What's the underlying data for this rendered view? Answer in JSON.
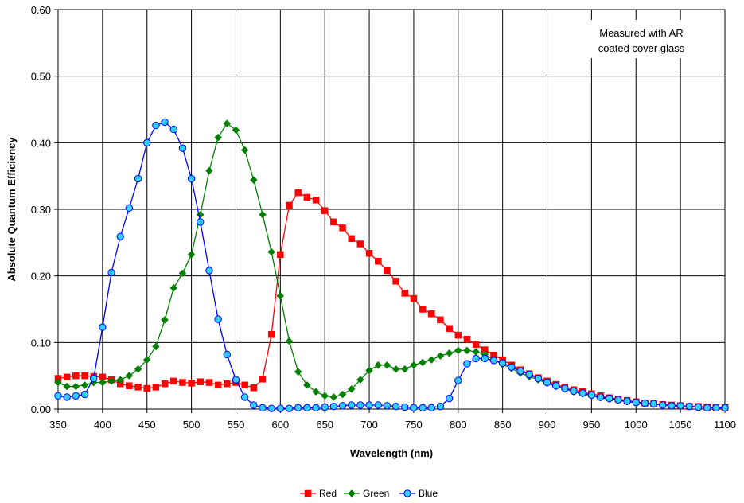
{
  "chart_data": {
    "type": "line",
    "title": "",
    "xlabel": "Wavelength (nm)",
    "ylabel": "Absolute Quantum Efficiency",
    "xlim": [
      350,
      1100
    ],
    "ylim": [
      0,
      0.6
    ],
    "x_ticks": [
      "350",
      "400",
      "450",
      "500",
      "550",
      "600",
      "650",
      "700",
      "750",
      "800",
      "850",
      "900",
      "950",
      "1000",
      "1050",
      "1100"
    ],
    "y_ticks": [
      "0.00",
      "0.10",
      "0.20",
      "0.30",
      "0.40",
      "0.50",
      "0.60"
    ],
    "grid": true,
    "legend_position": "bottom",
    "annotation": [
      "Measured with AR",
      "coated cover glass"
    ],
    "x": [
      350,
      360,
      370,
      380,
      390,
      400,
      410,
      420,
      430,
      440,
      450,
      460,
      470,
      480,
      490,
      500,
      510,
      520,
      530,
      540,
      550,
      560,
      570,
      580,
      590,
      600,
      610,
      620,
      630,
      640,
      650,
      660,
      670,
      680,
      690,
      700,
      710,
      720,
      730,
      740,
      750,
      760,
      770,
      780,
      790,
      800,
      810,
      820,
      830,
      840,
      850,
      860,
      870,
      880,
      890,
      900,
      910,
      920,
      930,
      940,
      950,
      960,
      970,
      980,
      990,
      1000,
      1010,
      1020,
      1030,
      1040,
      1050,
      1060,
      1070,
      1080,
      1090,
      1100
    ],
    "series": [
      {
        "name": "Red",
        "color": "#ff0000",
        "marker": "square",
        "values": [
          0.046,
          0.048,
          0.05,
          0.05,
          0.049,
          0.048,
          0.044,
          0.038,
          0.035,
          0.033,
          0.031,
          0.033,
          0.038,
          0.042,
          0.04,
          0.039,
          0.041,
          0.04,
          0.036,
          0.038,
          0.04,
          0.036,
          0.032,
          0.045,
          0.112,
          0.232,
          0.306,
          0.325,
          0.318,
          0.314,
          0.298,
          0.281,
          0.272,
          0.256,
          0.248,
          0.234,
          0.222,
          0.208,
          0.192,
          0.174,
          0.166,
          0.15,
          0.143,
          0.134,
          0.121,
          0.111,
          0.105,
          0.097,
          0.089,
          0.081,
          0.074,
          0.066,
          0.059,
          0.053,
          0.047,
          0.042,
          0.037,
          0.033,
          0.029,
          0.026,
          0.023,
          0.02,
          0.017,
          0.015,
          0.013,
          0.011,
          0.009,
          0.008,
          0.007,
          0.006,
          0.005,
          0.004,
          0.004,
          0.003,
          0.002,
          0.002
        ]
      },
      {
        "name": "Green",
        "color": "#008000",
        "marker": "diamond",
        "values": [
          0.04,
          0.034,
          0.034,
          0.036,
          0.04,
          0.04,
          0.042,
          0.044,
          0.05,
          0.06,
          0.074,
          0.094,
          0.134,
          0.182,
          0.204,
          0.232,
          0.292,
          0.358,
          0.408,
          0.429,
          0.419,
          0.389,
          0.344,
          0.292,
          0.236,
          0.17,
          0.102,
          0.056,
          0.036,
          0.026,
          0.02,
          0.018,
          0.022,
          0.03,
          0.044,
          0.058,
          0.066,
          0.066,
          0.06,
          0.06,
          0.066,
          0.07,
          0.074,
          0.08,
          0.084,
          0.088,
          0.088,
          0.086,
          0.082,
          0.074,
          0.067,
          0.061,
          0.054,
          0.049,
          0.044,
          0.039,
          0.034,
          0.03,
          0.026,
          0.023,
          0.02,
          0.017,
          0.015,
          0.013,
          0.011,
          0.01,
          0.008,
          0.007,
          0.006,
          0.005,
          0.004,
          0.004,
          0.003,
          0.002,
          0.002,
          0.001
        ]
      },
      {
        "name": "Blue",
        "color": "#0000ff",
        "marker_fill": "#33ccff",
        "marker": "circle",
        "values": [
          0.02,
          0.018,
          0.02,
          0.022,
          0.046,
          0.123,
          0.205,
          0.259,
          0.302,
          0.346,
          0.4,
          0.426,
          0.431,
          0.42,
          0.392,
          0.346,
          0.281,
          0.208,
          0.135,
          0.082,
          0.044,
          0.018,
          0.006,
          0.002,
          0.001,
          0.001,
          0.001,
          0.002,
          0.002,
          0.002,
          0.003,
          0.004,
          0.005,
          0.006,
          0.006,
          0.006,
          0.006,
          0.005,
          0.004,
          0.003,
          0.002,
          0.002,
          0.002,
          0.004,
          0.016,
          0.043,
          0.068,
          0.076,
          0.076,
          0.073,
          0.069,
          0.063,
          0.057,
          0.052,
          0.046,
          0.04,
          0.035,
          0.031,
          0.027,
          0.024,
          0.021,
          0.018,
          0.016,
          0.014,
          0.012,
          0.01,
          0.009,
          0.008,
          0.006,
          0.005,
          0.005,
          0.004,
          0.003,
          0.002,
          0.002,
          0.002
        ]
      }
    ]
  }
}
